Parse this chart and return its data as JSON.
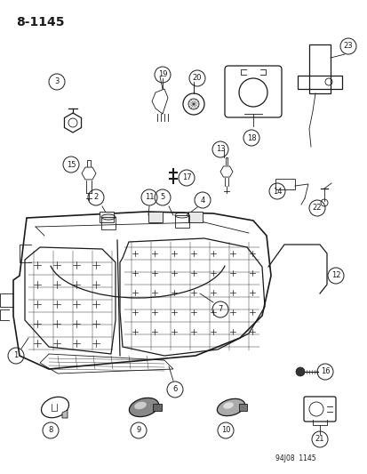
{
  "title": "8-1145",
  "footer": "94J08  1145",
  "bg_color": "#ffffff",
  "fg_color": "#1a1a1a",
  "fig_w": 4.14,
  "fig_h": 5.33,
  "dpi": 100
}
